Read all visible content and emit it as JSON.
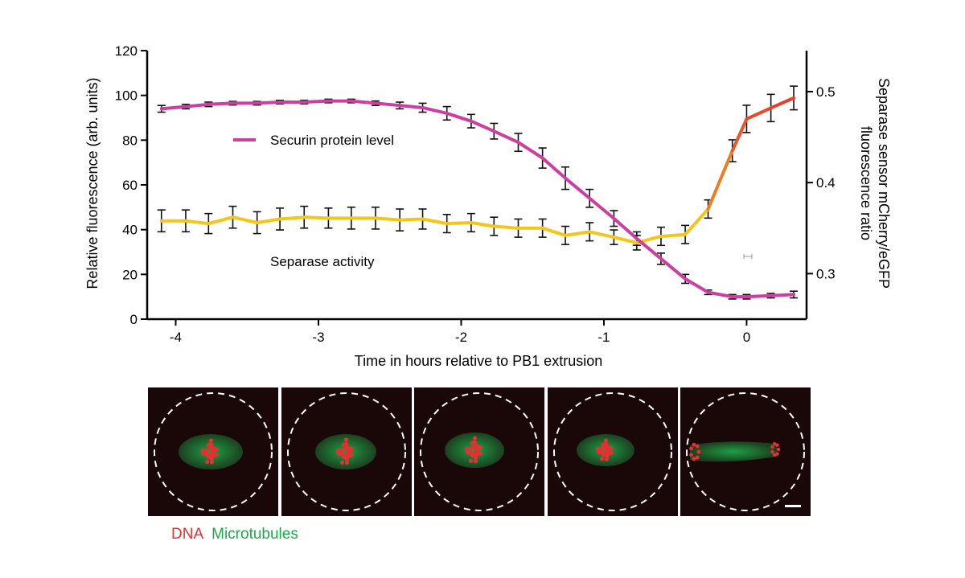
{
  "chart_data": {
    "type": "line",
    "xlabel": "Time in hours relative to PB1 extrusion",
    "ylabel_left": "Relative fluorescence (arb. units)",
    "ylabel_right_line1": "Separase sensor mCherry/eGFP",
    "ylabel_right_line2": "fluorescence ratio",
    "xlim": [
      -4.2,
      0.42
    ],
    "ylim_left": [
      0,
      120
    ],
    "ylim_right": [
      0.25,
      0.545
    ],
    "xticks": [
      -4,
      -3,
      -2,
      -1,
      0
    ],
    "xtick_labels": [
      "-4",
      "-3",
      "-2",
      "-1",
      "0"
    ],
    "yticks_left": [
      0,
      20,
      40,
      60,
      80,
      100,
      120
    ],
    "ytick_labels_left": [
      "0",
      "20",
      "40",
      "60",
      "80",
      "100",
      "120"
    ],
    "yticks_right": [
      0.3,
      0.4,
      0.5
    ],
    "ytick_labels_right": [
      "0.3",
      "0.4",
      "0.5"
    ],
    "legend": [
      {
        "name": "Securin protein level",
        "color": "#cc3fa0"
      },
      {
        "name": "Separase activity",
        "colors": [
          "#f5c518",
          "#e8402a"
        ]
      }
    ],
    "series": [
      {
        "name": "Securin protein level",
        "axis": "left",
        "color": "#cc3fa0",
        "x": [
          -4.1,
          -3.93,
          -3.77,
          -3.6,
          -3.43,
          -3.27,
          -3.1,
          -2.93,
          -2.77,
          -2.6,
          -2.43,
          -2.27,
          -2.1,
          -1.93,
          -1.77,
          -1.6,
          -1.43,
          -1.27,
          -1.1,
          -0.93,
          -0.77,
          -0.6,
          -0.43,
          -0.27,
          -0.1,
          0.0,
          0.17,
          0.33
        ],
        "values": [
          94,
          95,
          96,
          96.5,
          96.5,
          97,
          97,
          97.5,
          97.5,
          96.5,
          95.5,
          94.5,
          92,
          88.5,
          84,
          79,
          72,
          63,
          54,
          45,
          36,
          27,
          18,
          12,
          10,
          10,
          10.5,
          11
        ],
        "errors": [
          1.5,
          1,
          1,
          0.8,
          0.8,
          0.8,
          0.8,
          0.8,
          0.8,
          1,
          1.5,
          2,
          3,
          3,
          3.5,
          4,
          4.5,
          5,
          4,
          3.5,
          3,
          2.5,
          2,
          1,
          1,
          1,
          1,
          1.5
        ]
      },
      {
        "name": "Separase activity",
        "axis": "right",
        "color_start": "#f5c518",
        "color_end": "#e8402a",
        "x": [
          -4.1,
          -3.93,
          -3.77,
          -3.6,
          -3.43,
          -3.27,
          -3.1,
          -2.93,
          -2.77,
          -2.6,
          -2.43,
          -2.27,
          -2.1,
          -1.93,
          -1.77,
          -1.6,
          -1.43,
          -1.27,
          -1.1,
          -0.93,
          -0.77,
          -0.6,
          -0.43,
          -0.27,
          -0.1,
          0.0,
          0.17,
          0.33
        ],
        "values": [
          0.358,
          0.358,
          0.355,
          0.362,
          0.356,
          0.36,
          0.362,
          0.361,
          0.361,
          0.361,
          0.359,
          0.36,
          0.355,
          0.356,
          0.352,
          0.35,
          0.35,
          0.342,
          0.346,
          0.34,
          0.334,
          0.341,
          0.343,
          0.371,
          0.435,
          0.47,
          0.482,
          0.493
        ],
        "errors": [
          0.012,
          0.012,
          0.011,
          0.012,
          0.012,
          0.012,
          0.012,
          0.011,
          0.012,
          0.012,
          0.012,
          0.011,
          0.01,
          0.01,
          0.01,
          0.01,
          0.01,
          0.01,
          0.01,
          0.008,
          0.008,
          0.01,
          0.01,
          0.01,
          0.012,
          0.015,
          0.015,
          0.013
        ]
      }
    ]
  },
  "image_strip": {
    "frame_count": 5,
    "caption_dna": "DNA",
    "caption_microtubules": "Microtubules",
    "dna_color": "#e53030",
    "microtubule_color": "#1fa84a"
  }
}
